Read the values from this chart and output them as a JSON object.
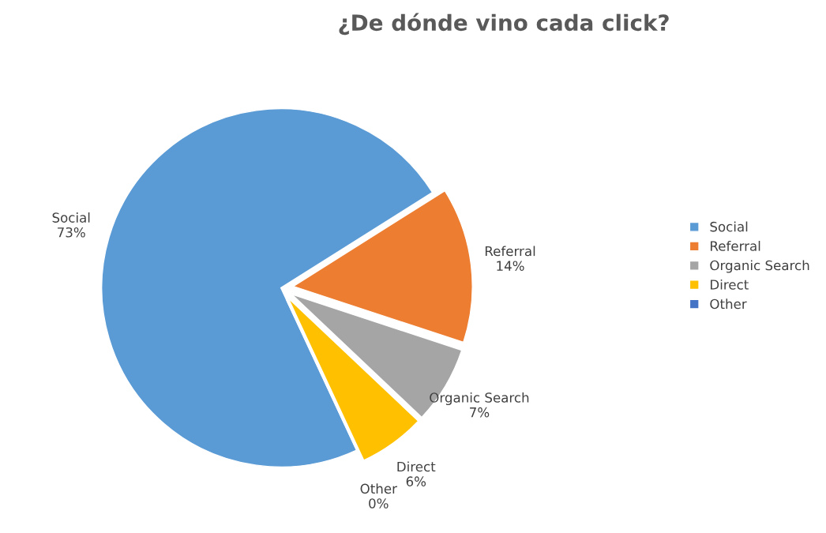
{
  "chart_data": {
    "type": "pie",
    "title": "¿De dónde vino cada click?",
    "categories": [
      "Social",
      "Referral",
      "Organic Search",
      "Direct",
      "Other"
    ],
    "values": [
      73,
      14,
      7,
      6,
      0
    ],
    "value_labels": [
      "73%",
      "14%",
      "7%",
      "6%",
      "0%"
    ],
    "colors": [
      "#5b9bd5",
      "#ed7d31",
      "#a5a5a5",
      "#ffc000",
      "#4472c4"
    ],
    "legend": "right"
  }
}
